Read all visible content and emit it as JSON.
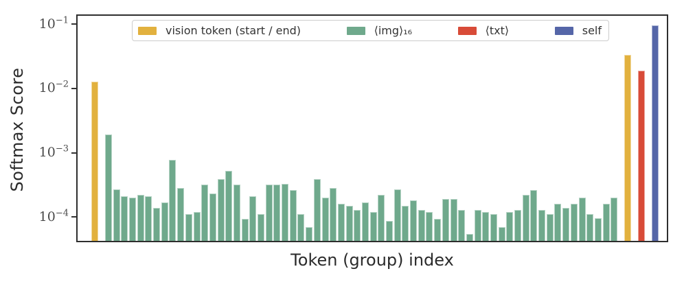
{
  "chart_data": {
    "type": "bar",
    "title": "",
    "xlabel": "Token (group) index",
    "ylabel": "Softmax Score",
    "yscale": "log",
    "ylim": [
      4.27e-05,
      0.138
    ],
    "grid": false,
    "legend_position": "upper center",
    "yticks": [
      {
        "mant": "10",
        "exp": "−1"
      },
      {
        "mant": "10",
        "exp": "−2"
      },
      {
        "mant": "10",
        "exp": "−3"
      },
      {
        "mant": "10",
        "exp": "−4"
      }
    ],
    "colors": {
      "vision": "#E2B13E",
      "img": "#6FA98C",
      "txt": "#D84B38",
      "self": "#5566A8"
    },
    "legend": [
      {
        "label": "vision token (start / end)",
        "color": "#E2B13E",
        "group": "vision"
      },
      {
        "label": "⟨img⟩₁₆",
        "color": "#6FA98C",
        "group": "img"
      },
      {
        "label": "⟨txt⟩",
        "color": "#D84B38",
        "group": "txt"
      },
      {
        "label": "self",
        "color": "#5566A8",
        "group": "self"
      }
    ],
    "bars": [
      {
        "group": "vision",
        "value": 0.0127
      },
      {
        "group": "img",
        "value": 0.0019,
        "gap": true
      },
      {
        "group": "img",
        "value": 0.00027
      },
      {
        "group": "img",
        "value": 0.00021
      },
      {
        "group": "img",
        "value": 0.0002
      },
      {
        "group": "img",
        "value": 0.00022
      },
      {
        "group": "img",
        "value": 0.00021
      },
      {
        "group": "img",
        "value": 0.00014
      },
      {
        "group": "img",
        "value": 0.00017
      },
      {
        "group": "img",
        "value": 0.00078
      },
      {
        "group": "img",
        "value": 0.00028
      },
      {
        "group": "img",
        "value": 0.00011
      },
      {
        "group": "img",
        "value": 0.00012
      },
      {
        "group": "img",
        "value": 0.00032
      },
      {
        "group": "img",
        "value": 0.00023
      },
      {
        "group": "img",
        "value": 0.00039
      },
      {
        "group": "img",
        "value": 0.00052
      },
      {
        "group": "img",
        "value": 0.00032
      },
      {
        "group": "img",
        "value": 9.3e-05
      },
      {
        "group": "img",
        "value": 0.00021
      },
      {
        "group": "img",
        "value": 0.00011
      },
      {
        "group": "img",
        "value": 0.00032
      },
      {
        "group": "img",
        "value": 0.00032
      },
      {
        "group": "img",
        "value": 0.00033
      },
      {
        "group": "img",
        "value": 0.00026
      },
      {
        "group": "img",
        "value": 0.00011
      },
      {
        "group": "img",
        "value": 7e-05
      },
      {
        "group": "img",
        "value": 0.00039
      },
      {
        "group": "img",
        "value": 0.0002
      },
      {
        "group": "img",
        "value": 0.00028
      },
      {
        "group": "img",
        "value": 0.00016
      },
      {
        "group": "img",
        "value": 0.00015
      },
      {
        "group": "img",
        "value": 0.00013
      },
      {
        "group": "img",
        "value": 0.00017
      },
      {
        "group": "img",
        "value": 0.00012
      },
      {
        "group": "img",
        "value": 0.00022
      },
      {
        "group": "img",
        "value": 8.8e-05
      },
      {
        "group": "img",
        "value": 0.00027
      },
      {
        "group": "img",
        "value": 0.00015
      },
      {
        "group": "img",
        "value": 0.00018
      },
      {
        "group": "img",
        "value": 0.00013
      },
      {
        "group": "img",
        "value": 0.00012
      },
      {
        "group": "img",
        "value": 9.3e-05
      },
      {
        "group": "img",
        "value": 0.00019
      },
      {
        "group": "img",
        "value": 0.00019
      },
      {
        "group": "img",
        "value": 0.00013
      },
      {
        "group": "img",
        "value": 5.5e-05
      },
      {
        "group": "img",
        "value": 0.00013
      },
      {
        "group": "img",
        "value": 0.00012
      },
      {
        "group": "img",
        "value": 0.00011
      },
      {
        "group": "img",
        "value": 7e-05
      },
      {
        "group": "img",
        "value": 0.00012
      },
      {
        "group": "img",
        "value": 0.00013
      },
      {
        "group": "img",
        "value": 0.00022
      },
      {
        "group": "img",
        "value": 0.00026
      },
      {
        "group": "img",
        "value": 0.00013
      },
      {
        "group": "img",
        "value": 0.00011
      },
      {
        "group": "img",
        "value": 0.00016
      },
      {
        "group": "img",
        "value": 0.00014
      },
      {
        "group": "img",
        "value": 0.00016
      },
      {
        "group": "img",
        "value": 0.0002
      },
      {
        "group": "img",
        "value": 0.00011
      },
      {
        "group": "img",
        "value": 9.6e-05
      },
      {
        "group": "img",
        "value": 0.00016
      },
      {
        "group": "img",
        "value": 0.0002
      },
      {
        "group": "vision",
        "value": 0.033,
        "gap": true
      },
      {
        "group": "txt",
        "value": 0.019,
        "gap": true
      },
      {
        "group": "self",
        "value": 0.095,
        "gap": true
      }
    ]
  }
}
